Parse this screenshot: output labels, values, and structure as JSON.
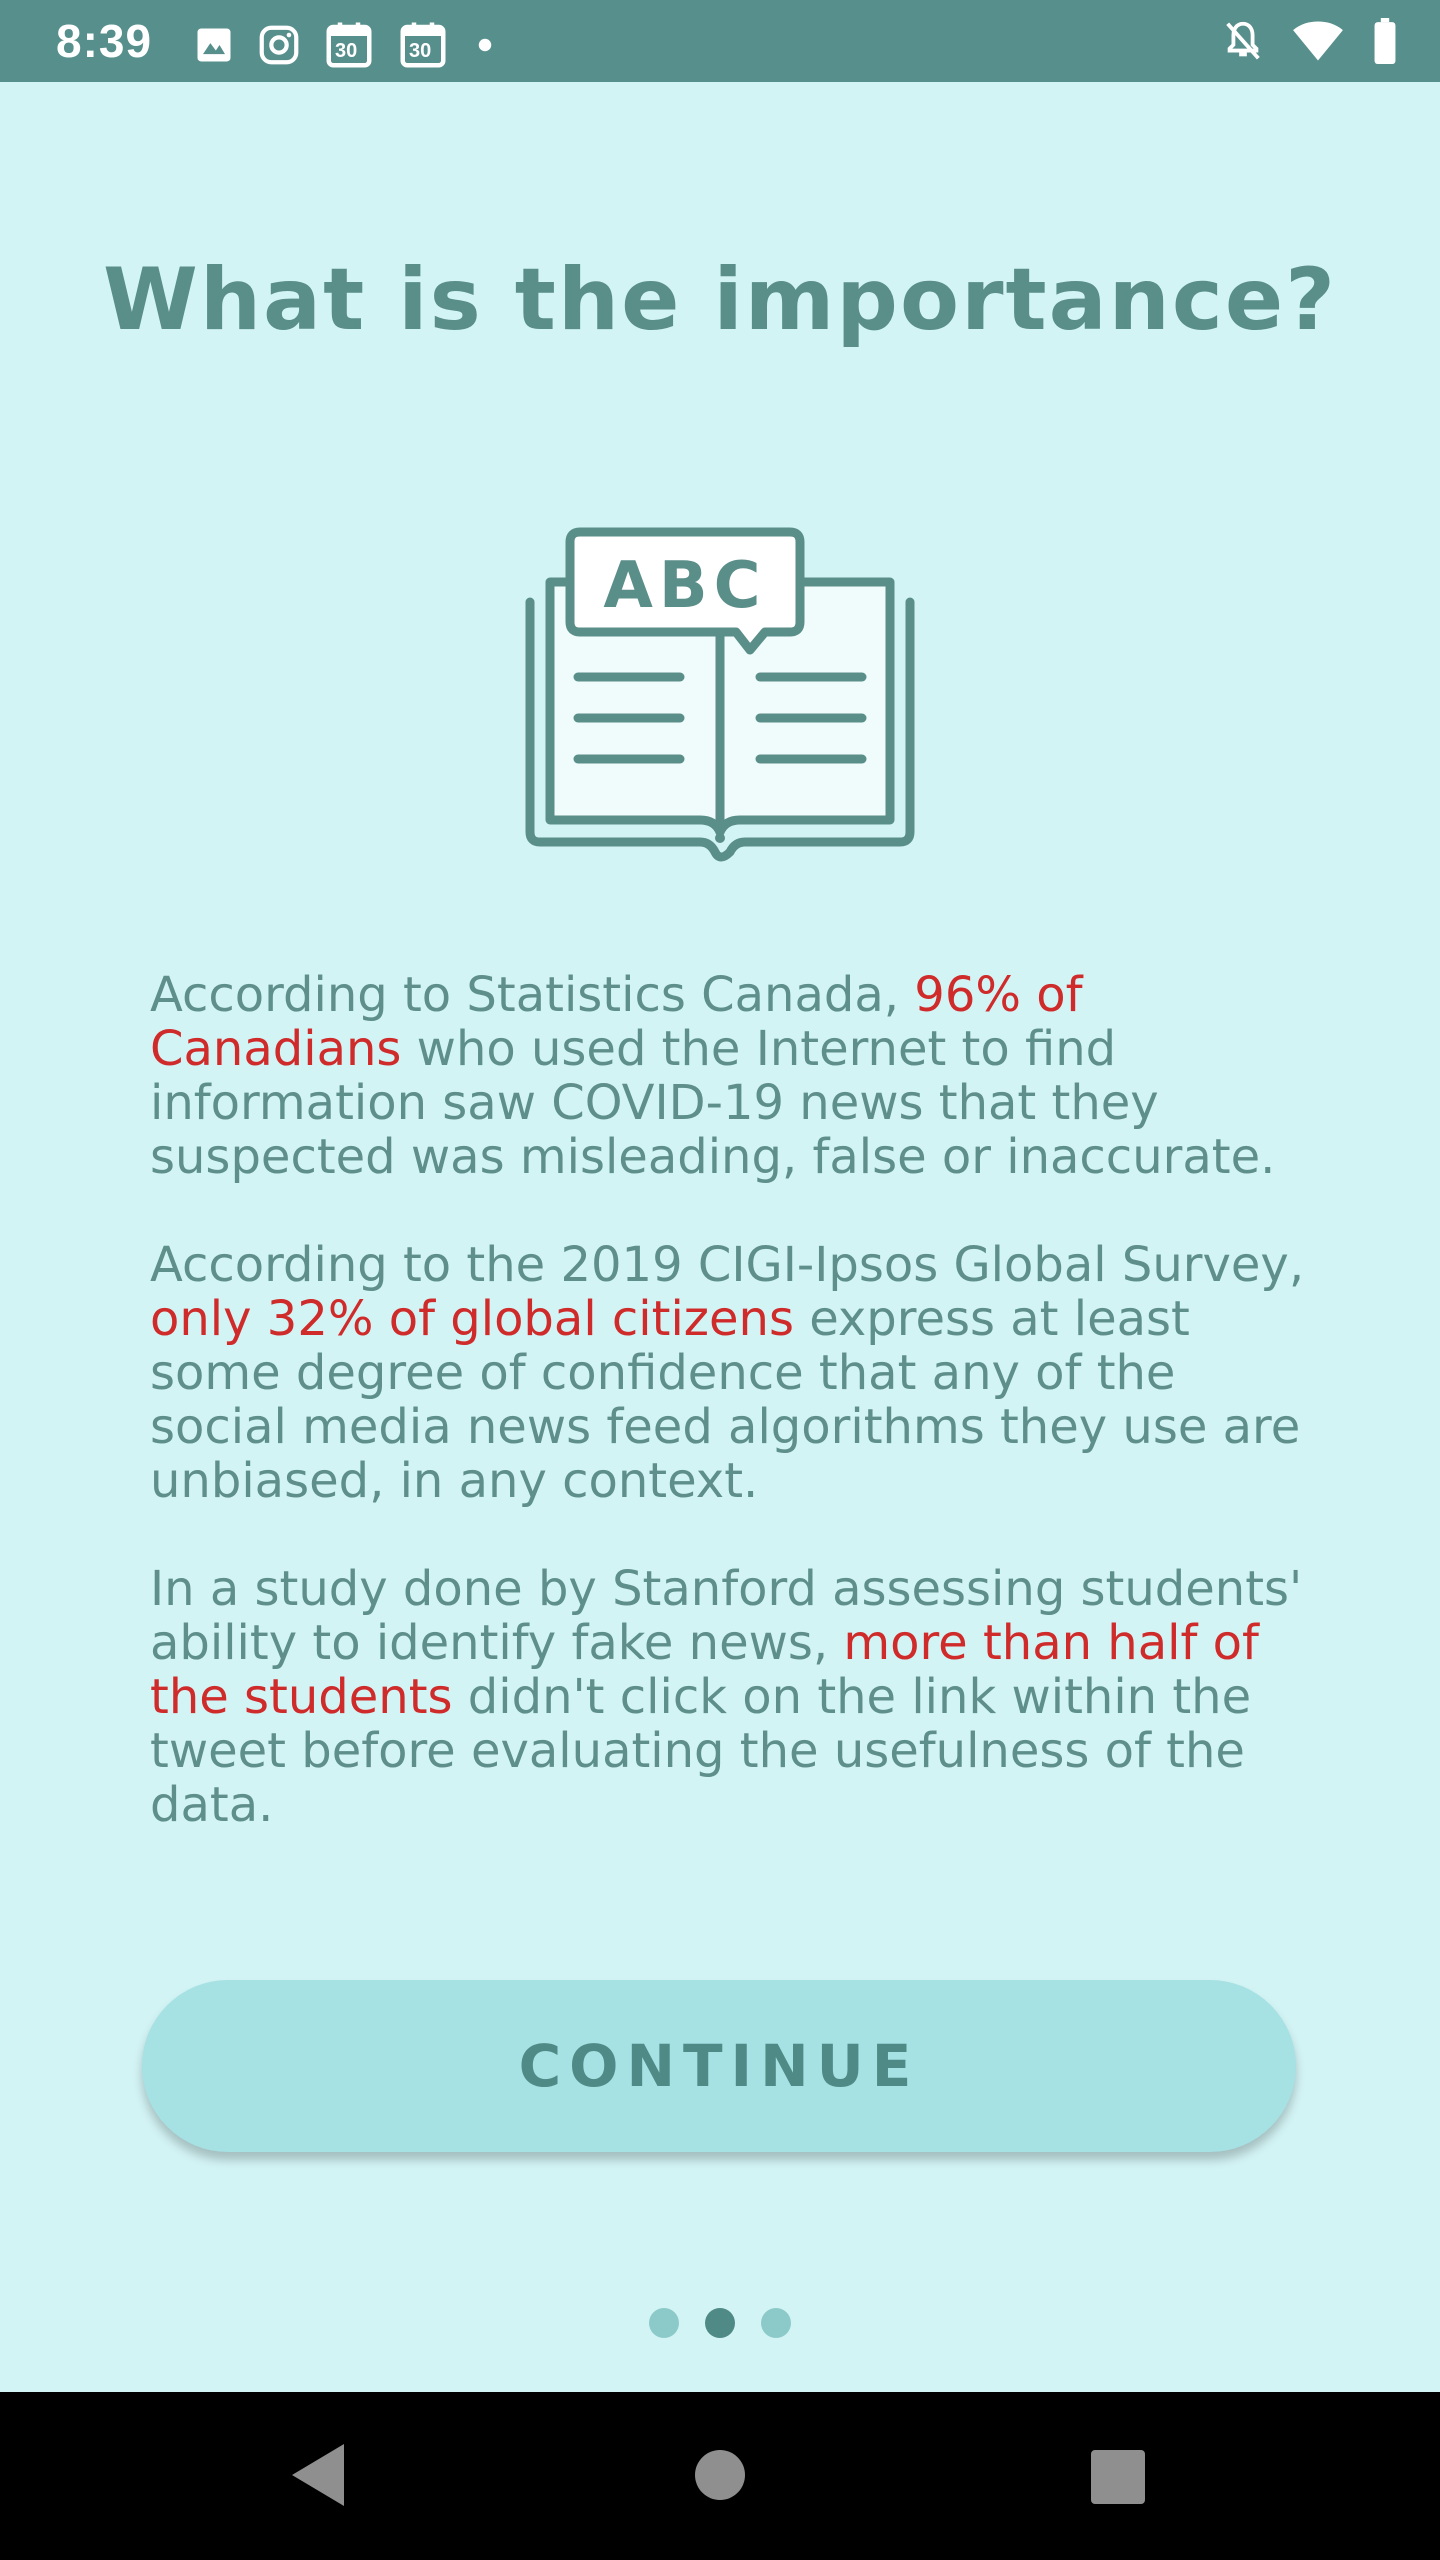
{
  "status_bar": {
    "time": "8:39",
    "icons_left": [
      "image-icon",
      "instagram-icon",
      "calendar-30-icon",
      "calendar-30-icon",
      "dot-icon"
    ],
    "calendar_day": "30",
    "icons_right": [
      "notifications-off-icon",
      "wifi-icon",
      "battery-icon"
    ]
  },
  "page": {
    "title": "What is the importance?",
    "illustration": "open-book-abc-icon",
    "illustration_text": "ABC",
    "paragraphs": [
      {
        "parts": [
          {
            "text": "According to Statistics Canada, ",
            "highlight": false
          },
          {
            "text": "96% of Canadians",
            "highlight": true
          },
          {
            "text": " who used the Internet to find information saw COVID-19 news that they suspected was misleading, false or inaccurate.",
            "highlight": false
          }
        ]
      },
      {
        "parts": [
          {
            "text": "According to the 2019 CIGI-Ipsos Global Survey, ",
            "highlight": false
          },
          {
            "text": "only 32% of global citizens",
            "highlight": true
          },
          {
            "text": " express at least some degree of confidence that any of the social media news feed algorithms they use are unbiased, in any context.",
            "highlight": false
          }
        ]
      },
      {
        "parts": [
          {
            "text": "In a study done by Stanford assessing students' ability to identify fake news, ",
            "highlight": false
          },
          {
            "text": "more than half of the students",
            "highlight": true
          },
          {
            "text": " didn't click on the link within the tweet before evaluating the usefulness of the data.",
            "highlight": false
          }
        ]
      }
    ],
    "continue_label": "CONTINUE",
    "pagination": {
      "total": 3,
      "current_index": 1
    }
  },
  "colors": {
    "background": "#d3f4f5",
    "status_bar": "#568f8c",
    "title": "#5a8e89",
    "text": "#5f8f8a",
    "highlight": "#d02b2b",
    "button": "#a6e1e3",
    "dot_inactive": "#8ccaca",
    "dot_active": "#4f8a86"
  },
  "nav_bar": {
    "buttons": [
      "back-icon",
      "home-icon",
      "recent-apps-icon"
    ]
  }
}
